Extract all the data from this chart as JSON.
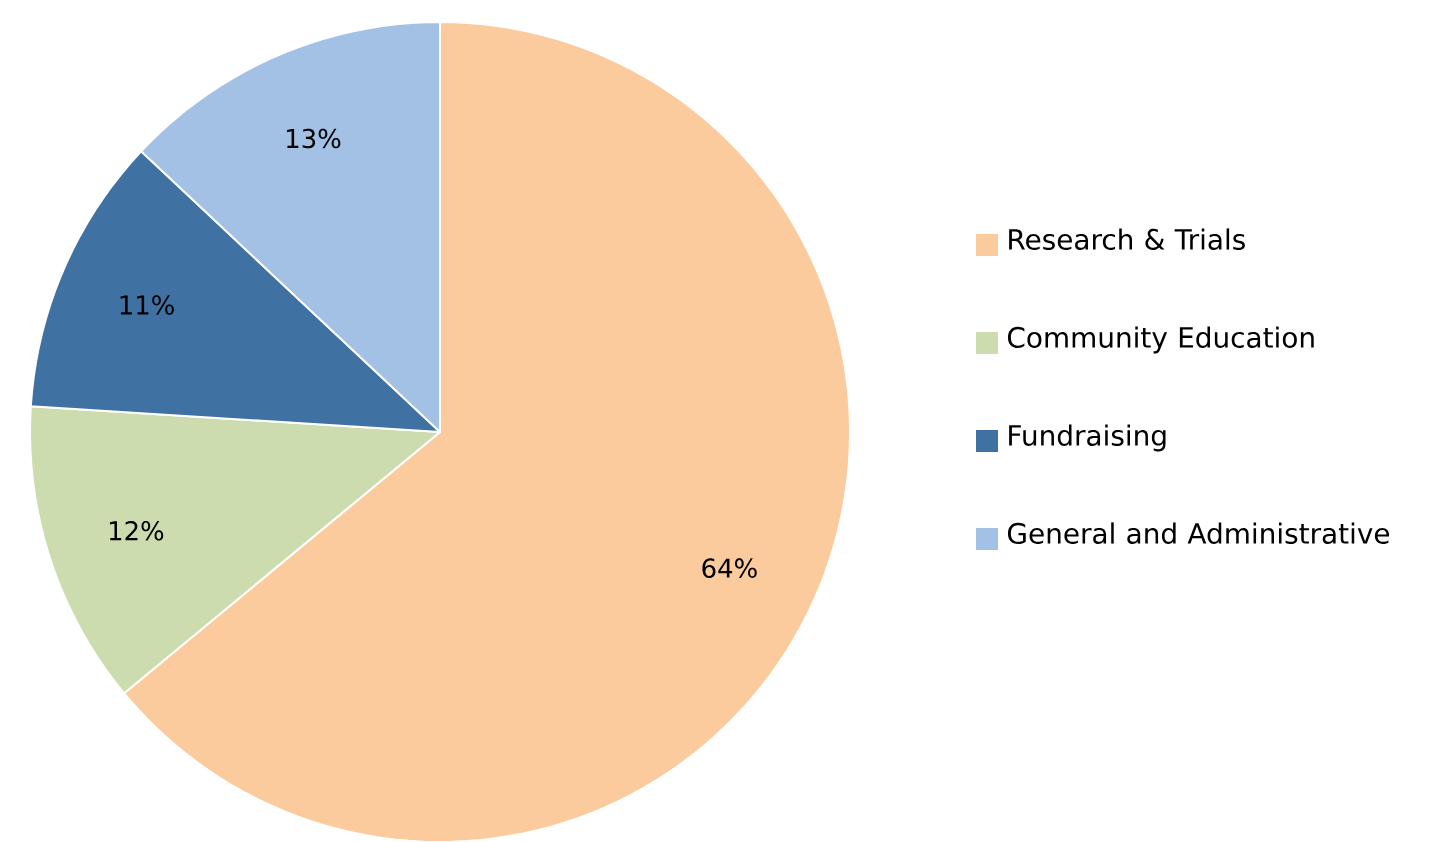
{
  "chart_data": {
    "type": "pie",
    "categories": [
      "Research & Trials",
      "Community Education",
      "Fundraising",
      "General and Administrative"
    ],
    "values": [
      64,
      12,
      11,
      13
    ],
    "colors": [
      "#fbca9d",
      "#cddcae",
      "#3f72a3",
      "#a3c1e4"
    ],
    "value_labels": [
      "64%",
      "12%",
      "11%",
      "13%"
    ],
    "legend": "right"
  }
}
